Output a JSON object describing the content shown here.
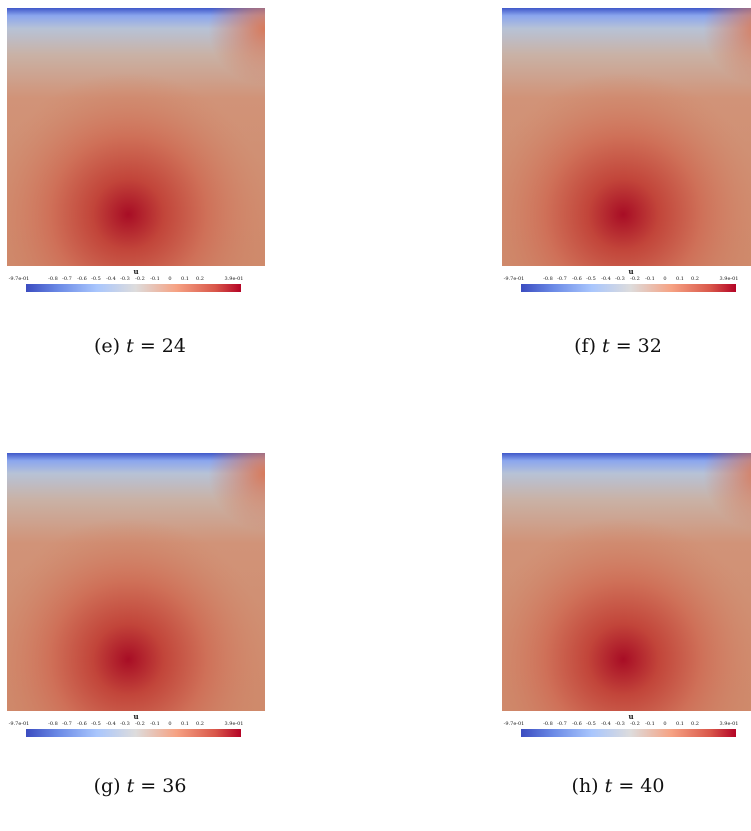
{
  "colormap": {
    "low_color": "#3b4cc0",
    "mid_color": "#dddcdc",
    "high_color": "#b40426"
  },
  "colorbar": {
    "title": "u",
    "min_label": "-9.7e-01",
    "max_label": "3.9e-01",
    "tick_labels": [
      "-0.8",
      "-0.7",
      "-0.6",
      "-0.5",
      "-0.4",
      "-0.3",
      "-0.2",
      "-0.1",
      "0",
      "0.1",
      "0.2"
    ]
  },
  "panels": [
    {
      "tag": "(e)",
      "var": "t",
      "eq": " = 24"
    },
    {
      "tag": "(f)",
      "var": "t",
      "eq": " = 32"
    },
    {
      "tag": "(g)",
      "var": "t",
      "eq": " = 36"
    },
    {
      "tag": "(h)",
      "var": "t",
      "eq": " = 40"
    }
  ]
}
